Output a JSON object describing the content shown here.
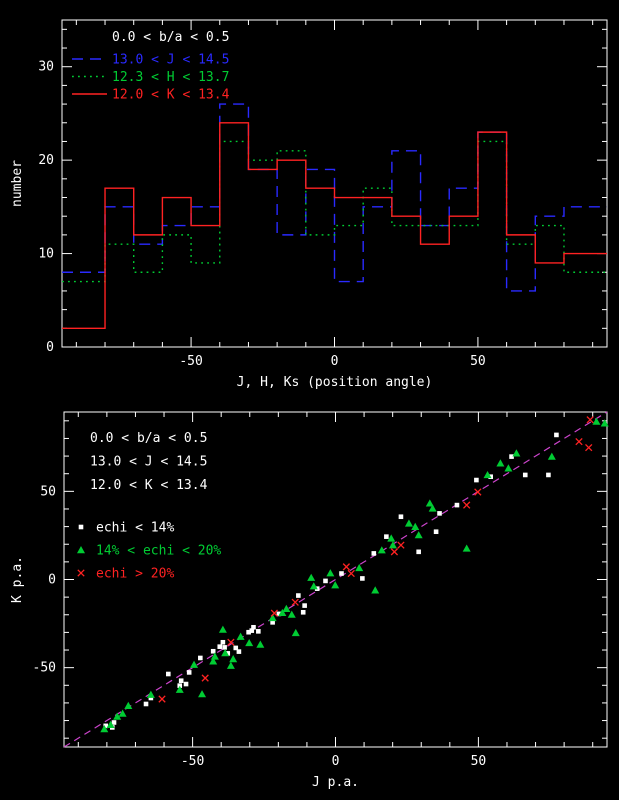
{
  "figure": {
    "background": "#000000",
    "foreground": "#ffffff"
  },
  "chart_data": [
    {
      "panel": "top",
      "type": "bar",
      "subtype": "step-histogram",
      "title": "",
      "xlabel": "J, H, Ks (position angle)",
      "ylabel": "number",
      "xlim": [
        -95,
        95
      ],
      "ylim": [
        0,
        35
      ],
      "grid": false,
      "legend_position": "top-left",
      "xticks": {
        "major": [
          -50,
          0,
          50
        ],
        "major_labels": [
          "-50",
          "0",
          "50"
        ],
        "minor_step": 10
      },
      "yticks": {
        "major": [
          0,
          10,
          20,
          30
        ],
        "major_labels": [
          "0",
          "10",
          "20",
          "30"
        ],
        "minor_step": 2
      },
      "annotation": "0.0 < b/a < 0.5",
      "bin_width": 10,
      "categories": [
        -85,
        -75,
        -65,
        -55,
        -45,
        -35,
        -25,
        -15,
        -5,
        5,
        15,
        25,
        35,
        45,
        55,
        65,
        75,
        85
      ],
      "series": [
        {
          "name": "13.0 < J < 14.5",
          "color": "#2a2aff",
          "style": "dashed",
          "values": [
            8,
            15,
            11,
            13,
            15,
            26,
            19,
            12,
            19,
            7,
            15,
            21,
            13,
            17,
            23,
            6,
            14,
            15
          ]
        },
        {
          "name": "12.3 < H < 13.7",
          "color": "#00cc33",
          "style": "dotted",
          "values": [
            7,
            11,
            8,
            12,
            9,
            22,
            20,
            21,
            12,
            13,
            17,
            13,
            13,
            13,
            22,
            11,
            13,
            8
          ]
        },
        {
          "name": "12.0 < K < 13.4",
          "color": "#ff2222",
          "style": "solid",
          "values": [
            2,
            17,
            12,
            16,
            13,
            24,
            19,
            20,
            17,
            16,
            16,
            14,
            11,
            14,
            23,
            12,
            9,
            10
          ]
        }
      ]
    },
    {
      "panel": "bottom",
      "type": "scatter",
      "title": "",
      "xlabel": "J p.a.",
      "ylabel": "K p.a.",
      "xlim": [
        -95,
        95
      ],
      "ylim": [
        -95,
        95
      ],
      "grid": false,
      "legend_position": "top-left",
      "xticks": {
        "major": [
          -50,
          0,
          50
        ],
        "major_labels": [
          "-50",
          "0",
          "50"
        ],
        "minor_step": 10
      },
      "yticks": {
        "major": [
          -50,
          0,
          50
        ],
        "major_labels": [
          "-50",
          "0",
          "50"
        ],
        "minor_step": 10
      },
      "annotations": [
        "0.0 < b/a < 0.5",
        "13.0 < J < 14.5",
        "12.0 < K < 13.4"
      ],
      "reference_line": {
        "equation": "y = x",
        "color": "#cc44cc",
        "style": "dashed"
      },
      "series": [
        {
          "name": "echi < 14%",
          "marker": "square",
          "color": "#ffffff",
          "points": [
            [
              -80.4,
              -83
            ],
            [
              -78.1,
              -83.9
            ],
            [
              -77.5,
              -81.1
            ],
            [
              -66.3,
              -70.6
            ],
            [
              -64.6,
              -67.2
            ],
            [
              -58.5,
              -53.6
            ],
            [
              -54.5,
              -60.2
            ],
            [
              -54,
              -57.4
            ],
            [
              -52.3,
              -59.3
            ],
            [
              -51.2,
              -52.7
            ],
            [
              -47.3,
              -44.5
            ],
            [
              -42.8,
              -40.7
            ],
            [
              -40.5,
              -38.1
            ],
            [
              -39.4,
              -35.6
            ],
            [
              -38.8,
              -38.5
            ],
            [
              -37.7,
              -41.9
            ],
            [
              -34.9,
              -38.8
            ],
            [
              -33.8,
              -40.9
            ],
            [
              -30.4,
              -29.9
            ],
            [
              -29.3,
              -29
            ],
            [
              -28.7,
              -27.1
            ],
            [
              -27,
              -29.4
            ],
            [
              -22,
              -24.3
            ],
            [
              -19.8,
              -19.5
            ],
            [
              -13,
              -9.1
            ],
            [
              -11.3,
              -18.6
            ],
            [
              -10.8,
              -14.8
            ],
            [
              -6.4,
              -5.2
            ],
            [
              -3.5,
              -0.8
            ],
            [
              2.1,
              3.4
            ],
            [
              9.4,
              0.6
            ],
            [
              13.4,
              14.8
            ],
            [
              17.8,
              24.3
            ],
            [
              22.9,
              35.6
            ],
            [
              29.1,
              15.7
            ],
            [
              35.2,
              27.1
            ],
            [
              36.4,
              37.5
            ],
            [
              42.5,
              42.2
            ],
            [
              49.3,
              56.4
            ],
            [
              54.3,
              58.3
            ],
            [
              61.6,
              69.7
            ],
            [
              66.4,
              59.3
            ],
            [
              74.5,
              59.3
            ],
            [
              77.3,
              82
            ]
          ]
        },
        {
          "name": "14% < echi < 20%",
          "marker": "triangle",
          "color": "#00cc33",
          "points": [
            [
              -80.9,
              -84.8
            ],
            [
              -78.7,
              -82.4
            ],
            [
              -76.4,
              -77.7
            ],
            [
              -74.5,
              -76
            ],
            [
              -72.5,
              -71.6
            ],
            [
              -64.6,
              -65.3
            ],
            [
              -54.5,
              -62.5
            ],
            [
              -49.5,
              -48.3
            ],
            [
              -46.7,
              -65
            ],
            [
              -42.8,
              -46.4
            ],
            [
              -42.2,
              -43.6
            ],
            [
              -39.4,
              -28.4
            ],
            [
              -38.6,
              -41.7
            ],
            [
              -36.6,
              -48.9
            ],
            [
              -35.8,
              -45.1
            ],
            [
              -33.2,
              -32.4
            ],
            [
              -30.2,
              -36
            ],
            [
              -26.3,
              -36.9
            ],
            [
              -22,
              -21.8
            ],
            [
              -18.6,
              -18.9
            ],
            [
              -17.2,
              -16.6
            ],
            [
              -15.3,
              -19.9
            ],
            [
              -13.9,
              -30.3
            ],
            [
              -8.5,
              1
            ],
            [
              -7.6,
              -3.8
            ],
            [
              -1.8,
              3.6
            ],
            [
              -0.1,
              -3.2
            ],
            [
              8.3,
              6.6
            ],
            [
              13.9,
              -6.1
            ],
            [
              16.2,
              16.6
            ],
            [
              19.5,
              23.3
            ],
            [
              20.1,
              19.5
            ],
            [
              25.7,
              31.8
            ],
            [
              27.9,
              29.9
            ],
            [
              29.1,
              25.2
            ],
            [
              33,
              43.2
            ],
            [
              34,
              40.3
            ],
            [
              45.9,
              17.6
            ],
            [
              53.2,
              59.3
            ],
            [
              57.7,
              65.9
            ],
            [
              60.5,
              63.1
            ],
            [
              63.3,
              71.6
            ],
            [
              75.7,
              69.7
            ],
            [
              91.3,
              89.6
            ],
            [
              94.2,
              88.6
            ]
          ]
        },
        {
          "name": "echi > 20%",
          "marker": "cross",
          "color": "#ff2222",
          "points": [
            [
              -60.7,
              -67.8
            ],
            [
              -45.6,
              -55.9
            ],
            [
              -36.6,
              -35.6
            ],
            [
              -21.4,
              -19.1
            ],
            [
              -14.1,
              -12.9
            ],
            [
              3.8,
              7.2
            ],
            [
              5.5,
              3.4
            ],
            [
              20.6,
              15.7
            ],
            [
              22.9,
              19.5
            ],
            [
              45.9,
              42.2
            ],
            [
              49.8,
              49.6
            ],
            [
              85.2,
              78.2
            ],
            [
              88.6,
              74.8
            ],
            [
              89.1,
              90.6
            ]
          ]
        }
      ]
    }
  ]
}
